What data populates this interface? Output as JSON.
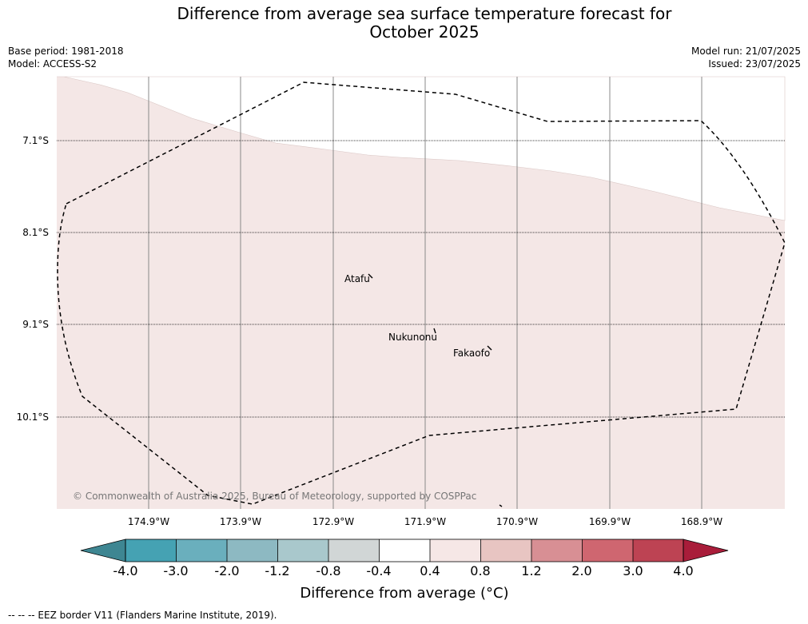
{
  "header": {
    "title_line1": "Difference from average sea surface temperature forecast for",
    "title_line2": "October 2025",
    "base_period": "Base period: 1981-2018",
    "model": "Model: ACCESS-S2",
    "model_run": "Model run: 21/07/2025",
    "issued": "Issued: 23/07/2025"
  },
  "map": {
    "latitude_labels": [
      "7.1°S",
      "8.1°S",
      "9.1°S",
      "10.1°S"
    ],
    "longitude_labels": [
      "174.9°W",
      "173.9°W",
      "172.9°W",
      "171.9°W",
      "170.9°W",
      "169.9°W",
      "168.9°W"
    ],
    "places": [
      "Atafu",
      "Nukunonu",
      "Fakaofo"
    ],
    "copyright": "© Commonwealth of Australia 2025, Bureau of Meteorology, supported by COSPPac",
    "colors": {
      "background_anomaly": "#f4e7e6",
      "upper_band": "#ffffff",
      "eez_border": "#000000",
      "graticule_meridian": "#888888",
      "graticule_parallel": "#000000"
    }
  },
  "colorbar": {
    "title": "Difference from average (°C)",
    "tick_labels": [
      "-4.0",
      "-3.0",
      "-2.0",
      "-1.2",
      "-0.8",
      "-0.4",
      "0.4",
      "0.8",
      "1.2",
      "2.0",
      "3.0",
      "4.0"
    ],
    "colors": [
      "#3e8692",
      "#45a2b3",
      "#6aafbd",
      "#8db9c2",
      "#a9c8cc",
      "#d1d6d6",
      "#ffffff",
      "#f6e7e6",
      "#e8c5c2",
      "#d88f94",
      "#cf6670",
      "#bd4353",
      "#a91d3a"
    ]
  },
  "footnote": "--  --  -- EEZ border V11 (Flanders Marine Institute, 2019)."
}
